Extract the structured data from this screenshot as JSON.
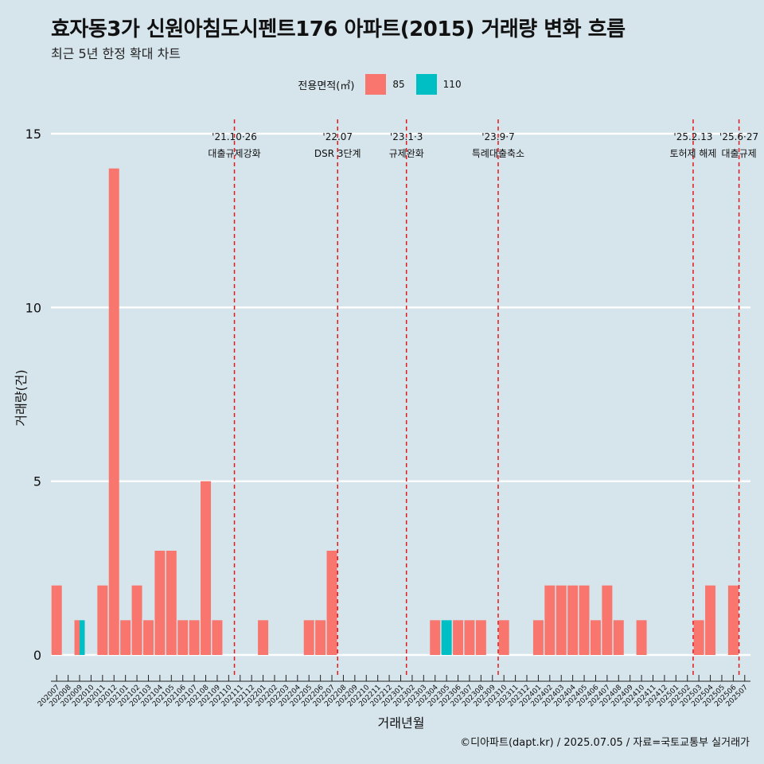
{
  "title": "효자동3가 신원아침도시펜트176 아파트(2015) 거래량 변화 흐름",
  "subtitle": "최근 5년 한정 확대 차트",
  "legend": {
    "title": "전용면적(㎡)",
    "items": [
      {
        "label": "85",
        "color": "#f8766d"
      },
      {
        "label": "110",
        "color": "#00bfc4"
      }
    ]
  },
  "caption": "©디아파트(dapt.kr) / 2025.07.05 / 자료=국토교통부 실거래가",
  "chart_data": {
    "type": "bar",
    "title": "효자동3가 신원아침도시펜트176 아파트(2015) 거래량 변화 흐름",
    "xlabel": "거래년월",
    "ylabel": "거래량(건)",
    "ylim": [
      0,
      15
    ],
    "yticks": [
      0,
      5,
      10,
      15
    ],
    "grid": "horizontal",
    "legend_position": "top",
    "categories": [
      "202007",
      "202008",
      "202009",
      "202010",
      "202011",
      "202012",
      "202101",
      "202102",
      "202103",
      "202104",
      "202105",
      "202106",
      "202107",
      "202108",
      "202109",
      "202110",
      "202111",
      "202112",
      "202201",
      "202202",
      "202203",
      "202204",
      "202205",
      "202206",
      "202207",
      "202208",
      "202209",
      "202210",
      "202211",
      "202212",
      "202301",
      "202302",
      "202303",
      "202304",
      "202305",
      "202306",
      "202307",
      "202308",
      "202309",
      "202310",
      "202311",
      "202312",
      "202401",
      "202402",
      "202403",
      "202404",
      "202405",
      "202406",
      "202407",
      "202408",
      "202409",
      "202410",
      "202411",
      "202412",
      "202501",
      "202502",
      "202503",
      "202504",
      "202505",
      "202506",
      "202507"
    ],
    "series": [
      {
        "name": "85",
        "color": "#f8766d",
        "values": [
          2,
          0,
          1,
          0,
          2,
          14,
          1,
          2,
          1,
          3,
          3,
          1,
          1,
          5,
          1,
          0,
          0,
          0,
          1,
          0,
          0,
          0,
          1,
          1,
          3,
          0,
          0,
          0,
          0,
          0,
          0,
          0,
          0,
          1,
          0,
          1,
          1,
          1,
          0,
          1,
          0,
          0,
          1,
          2,
          2,
          2,
          2,
          1,
          2,
          1,
          0,
          1,
          0,
          0,
          0,
          0,
          1,
          2,
          0,
          2,
          0
        ]
      },
      {
        "name": "110",
        "color": "#00bfc4",
        "values": [
          0,
          0,
          1,
          0,
          0,
          0,
          0,
          0,
          0,
          0,
          0,
          0,
          0,
          0,
          0,
          0,
          0,
          0,
          0,
          0,
          0,
          0,
          0,
          0,
          0,
          0,
          0,
          0,
          0,
          0,
          0,
          0,
          0,
          0,
          1,
          0,
          0,
          0,
          0,
          0,
          0,
          0,
          0,
          0,
          0,
          0,
          0,
          0,
          0,
          0,
          0,
          0,
          0,
          0,
          0,
          0,
          0,
          0,
          0,
          0,
          0
        ]
      }
    ],
    "annotations": [
      {
        "x": "202110",
        "date": "'21.10·26",
        "text": "대출규제강화"
      },
      {
        "x": "202207",
        "date": "'22.07",
        "text": "DSR 3단계"
      },
      {
        "x": "202301",
        "date": "'23.1·3",
        "text": "규제완화"
      },
      {
        "x": "202309",
        "date": "'23.9·7",
        "text": "특례대출축소"
      },
      {
        "x": "202502",
        "date": "'25.2.13",
        "text": "토허제 해제"
      },
      {
        "x": "202506",
        "date": "'25.6·27",
        "text": "대출규제"
      }
    ]
  }
}
